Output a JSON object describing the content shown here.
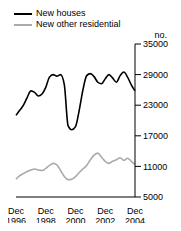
{
  "chart_data": {
    "type": "line",
    "ylabel": "no.",
    "categories": [
      "Dec 1996",
      null,
      null,
      null,
      null,
      null,
      null,
      null,
      "Dec 1998",
      null,
      null,
      null,
      null,
      null,
      null,
      null,
      "Dec 2000",
      null,
      null,
      null,
      null,
      null,
      null,
      null,
      "Dec 2002",
      null,
      null,
      null,
      null,
      null,
      null,
      null,
      "Dec 2004"
    ],
    "series": [
      {
        "name": "New houses",
        "color": "#000000",
        "values": [
          21000,
          22000,
          23000,
          24500,
          25800,
          25500,
          24800,
          25200,
          26500,
          28500,
          29000,
          28700,
          29000,
          27000,
          19000,
          18200,
          18800,
          22000,
          26000,
          28800,
          29200,
          28600,
          27500,
          27200,
          28200,
          29000,
          28300,
          27500,
          28800,
          29500,
          28500,
          27000,
          25800
        ]
      },
      {
        "name": "New other residential",
        "color": "#aaaaaa",
        "values": [
          8500,
          9200,
          9600,
          10000,
          10300,
          10500,
          10300,
          10200,
          10600,
          11200,
          11600,
          11300,
          10200,
          9000,
          8400,
          8500,
          9000,
          9800,
          10500,
          11200,
          12300,
          13200,
          13600,
          12800,
          12000,
          11600,
          12000,
          12300,
          12700,
          12200,
          12600,
          12000,
          11400
        ]
      }
    ],
    "ylim": [
      5000,
      35000
    ],
    "yticks": [
      5000,
      11000,
      17000,
      23000,
      29000,
      35000
    ],
    "legend": "top-left",
    "grid": false
  }
}
